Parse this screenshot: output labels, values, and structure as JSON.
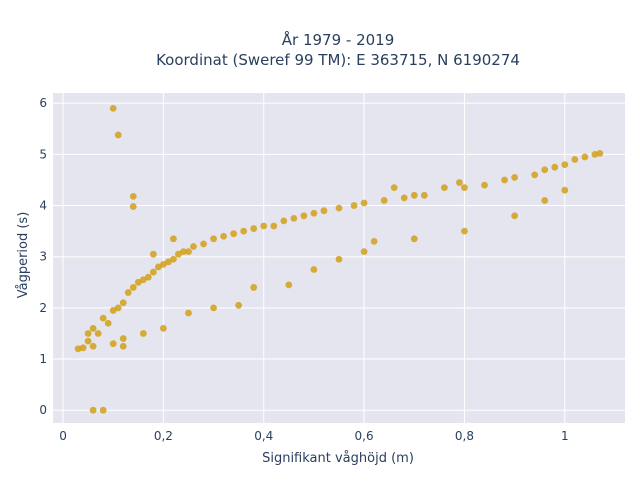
{
  "chart_data": {
    "type": "scatter",
    "title_line1": "År 1979 - 2019",
    "title_line2": "Koordinat (Sweref 99 TM): E 363715, N 6190274",
    "xlabel": "Signifikant våghöjd (m)",
    "ylabel": "Vågperiod (s)",
    "xlim": [
      -0.02,
      1.12
    ],
    "ylim": [
      -0.25,
      6.2
    ],
    "x_ticks": [
      {
        "value": 0,
        "label": "0"
      },
      {
        "value": 0.2,
        "label": "0,2"
      },
      {
        "value": 0.4,
        "label": "0,4"
      },
      {
        "value": 0.6,
        "label": "0,6"
      },
      {
        "value": 0.8,
        "label": "0,8"
      },
      {
        "value": 1,
        "label": "1"
      }
    ],
    "y_ticks": [
      {
        "value": 0,
        "label": "0"
      },
      {
        "value": 1,
        "label": "1"
      },
      {
        "value": 2,
        "label": "2"
      },
      {
        "value": 3,
        "label": "3"
      },
      {
        "value": 4,
        "label": "4"
      },
      {
        "value": 5,
        "label": "5"
      },
      {
        "value": 6,
        "label": "6"
      }
    ],
    "grid": true,
    "legend": "none",
    "point_color": "#d4a017",
    "background_color": "#e5e5ef",
    "series": [
      {
        "points": [
          [
            0.03,
            1.2
          ],
          [
            0.04,
            1.22
          ],
          [
            0.05,
            1.5
          ],
          [
            0.05,
            1.35
          ],
          [
            0.06,
            1.25
          ],
          [
            0.06,
            1.6
          ],
          [
            0.07,
            1.5
          ],
          [
            0.08,
            1.8
          ],
          [
            0.09,
            1.7
          ],
          [
            0.1,
            1.95
          ],
          [
            0.1,
            1.3
          ],
          [
            0.11,
            2.0
          ],
          [
            0.12,
            2.1
          ],
          [
            0.12,
            1.25
          ],
          [
            0.13,
            2.3
          ],
          [
            0.14,
            2.4
          ],
          [
            0.15,
            2.5
          ],
          [
            0.16,
            2.55
          ],
          [
            0.17,
            2.6
          ],
          [
            0.18,
            2.7
          ],
          [
            0.19,
            2.8
          ],
          [
            0.2,
            2.85
          ],
          [
            0.2,
            1.6
          ],
          [
            0.21,
            2.9
          ],
          [
            0.22,
            2.95
          ],
          [
            0.23,
            3.05
          ],
          [
            0.24,
            3.1
          ],
          [
            0.25,
            3.1
          ],
          [
            0.26,
            3.2
          ],
          [
            0.28,
            3.25
          ],
          [
            0.3,
            3.35
          ],
          [
            0.32,
            3.4
          ],
          [
            0.34,
            3.45
          ],
          [
            0.36,
            3.5
          ],
          [
            0.38,
            3.55
          ],
          [
            0.4,
            3.6
          ],
          [
            0.42,
            3.6
          ],
          [
            0.44,
            3.7
          ],
          [
            0.46,
            3.75
          ],
          [
            0.48,
            3.8
          ],
          [
            0.5,
            3.85
          ],
          [
            0.52,
            3.9
          ],
          [
            0.55,
            3.95
          ],
          [
            0.58,
            4.0
          ],
          [
            0.6,
            4.05
          ],
          [
            0.64,
            4.1
          ],
          [
            0.66,
            4.35
          ],
          [
            0.68,
            4.15
          ],
          [
            0.7,
            4.2
          ],
          [
            0.72,
            4.2
          ],
          [
            0.76,
            4.35
          ],
          [
            0.79,
            4.45
          ],
          [
            0.8,
            4.35
          ],
          [
            0.84,
            4.4
          ],
          [
            0.88,
            4.5
          ],
          [
            0.9,
            4.55
          ],
          [
            0.94,
            4.6
          ],
          [
            0.96,
            4.7
          ],
          [
            0.98,
            4.75
          ],
          [
            1.0,
            4.8
          ],
          [
            1.02,
            4.9
          ],
          [
            1.04,
            4.95
          ],
          [
            1.06,
            5.0
          ],
          [
            1.07,
            5.02
          ],
          [
            0.1,
            5.9
          ],
          [
            0.11,
            5.38
          ],
          [
            0.14,
            4.18
          ],
          [
            0.14,
            3.98
          ],
          [
            0.06,
            0.0
          ],
          [
            0.08,
            0.0
          ],
          [
            0.18,
            3.05
          ],
          [
            0.22,
            3.35
          ],
          [
            0.3,
            2.0
          ],
          [
            0.35,
            2.05
          ],
          [
            0.45,
            2.45
          ],
          [
            0.5,
            2.75
          ],
          [
            0.55,
            2.95
          ],
          [
            0.6,
            3.1
          ],
          [
            0.7,
            3.35
          ],
          [
            0.8,
            3.5
          ],
          [
            0.9,
            3.8
          ],
          [
            1.0,
            4.3
          ],
          [
            0.96,
            4.1
          ],
          [
            0.62,
            3.3
          ],
          [
            0.38,
            2.4
          ],
          [
            0.25,
            1.9
          ],
          [
            0.16,
            1.5
          ],
          [
            0.12,
            1.4
          ]
        ]
      }
    ]
  }
}
